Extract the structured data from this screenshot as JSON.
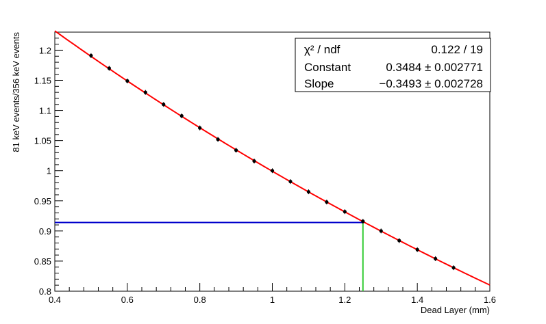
{
  "chart_data": {
    "type": "scatter",
    "title": "",
    "xlabel": "Dead Layer (mm)",
    "ylabel": "81 keV events/356 keV events",
    "xlim": [
      0.4,
      1.6
    ],
    "ylim": [
      0.8,
      1.23
    ],
    "x_ticks": [
      "0.4",
      "0.6",
      "0.8",
      "1",
      "1.2",
      "1.4",
      "1.6"
    ],
    "y_ticks": [
      "0.8",
      "0.85",
      "0.9",
      "0.95",
      "1",
      "1.05",
      "1.1",
      "1.15",
      "1.2"
    ],
    "grid": false,
    "series": [
      {
        "kind": "points-with-error-bars",
        "color": "#000000",
        "x": [
          0.5,
          0.55,
          0.6,
          0.65,
          0.7,
          0.75,
          0.8,
          0.85,
          0.9,
          0.95,
          1.0,
          1.05,
          1.1,
          1.15,
          1.2,
          1.25,
          1.3,
          1.35,
          1.4,
          1.45,
          1.5
        ],
        "y": [
          1.191,
          1.17,
          1.149,
          1.13,
          1.11,
          1.091,
          1.071,
          1.052,
          1.034,
          1.016,
          1.0,
          0.982,
          0.965,
          0.948,
          0.932,
          0.916,
          0.9,
          0.884,
          0.869,
          0.854,
          0.839
        ],
        "yerr": 0.004
      },
      {
        "kind": "fit-curve",
        "color": "#ff0000",
        "function": "exp(Constant + Slope*x)",
        "x_range": [
          0.4,
          1.6
        ]
      },
      {
        "kind": "horizontal-line",
        "color": "#0000cc",
        "y": 0.914,
        "x_range": [
          0.4,
          1.25
        ]
      },
      {
        "kind": "vertical-line",
        "color": "#33cc33",
        "x": 1.25,
        "y_range": [
          0.8,
          0.914
        ]
      }
    ],
    "fit": {
      "Constant": 0.3484,
      "Slope": -0.3493
    },
    "stats_box": {
      "position": "top-right",
      "rows": [
        {
          "label": "χ² / ndf",
          "value": "0.122 / 19"
        },
        {
          "label": "Constant",
          "value": "0.3484 ± 0.002771"
        },
        {
          "label": "Slope",
          "value": "−0.3493 ± 0.002728"
        }
      ]
    }
  }
}
